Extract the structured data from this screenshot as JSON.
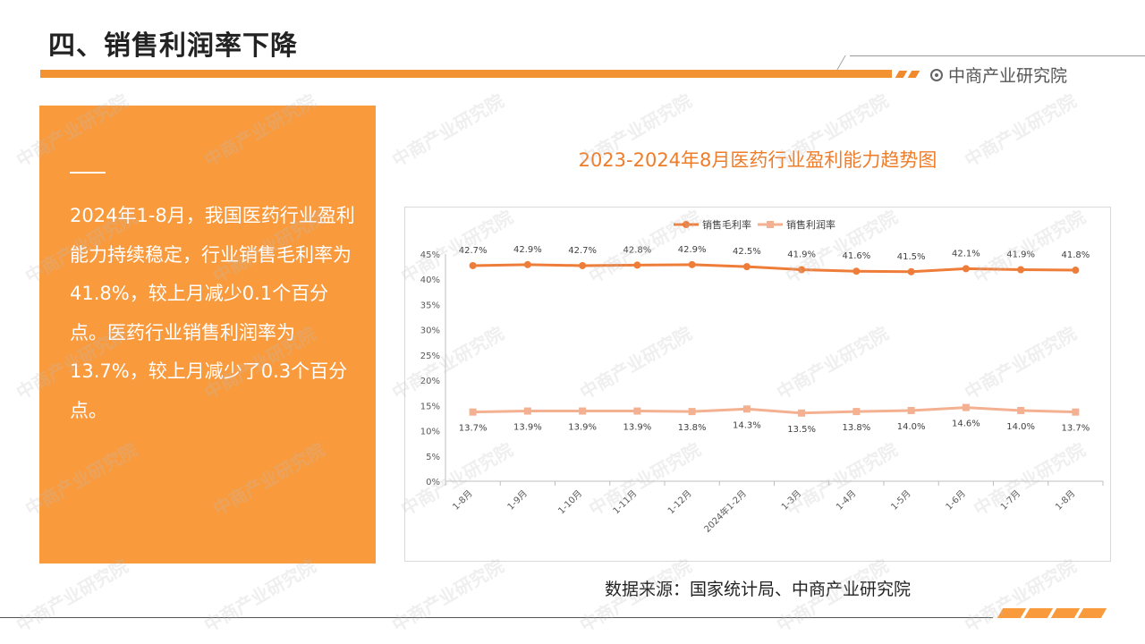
{
  "page_title": "四、销售利润率下降",
  "brand": "中商产业研究院",
  "side_text": "2024年1-8月，我国医药行业盈利能力持续稳定，行业销售毛利率为41.8%，较上月减少0.1个百分点。医药行业销售利润率为13.7%，较上月减少了0.3个百分点。",
  "watermark": "中商产业研究院",
  "source": "数据来源：国家统计局、中商产业研究院",
  "colors": {
    "accent": "#f39233",
    "panel": "#f99a3d",
    "series1": "#ee7d3a",
    "series2": "#f4b191"
  },
  "chart_data": {
    "type": "line",
    "title": "2023-2024年8月医药行业盈利能力趋势图",
    "categories": [
      "1-8月",
      "1-9月",
      "1-10月",
      "1-11月",
      "1-12月",
      "2024年1-2月",
      "1-3月",
      "1-4月",
      "1-5月",
      "1-6月",
      "1-7月",
      "1-8月"
    ],
    "series": [
      {
        "name": "销售毛利率",
        "values": [
          42.7,
          42.9,
          42.7,
          42.8,
          42.9,
          42.5,
          41.9,
          41.6,
          41.5,
          42.1,
          41.9,
          41.8
        ],
        "labels": [
          "42.7%",
          "42.9%",
          "42.7%",
          "42.8%",
          "42.9%",
          "42.5%",
          "41.9%",
          "41.6%",
          "41.5%",
          "42.1%",
          "41.9%",
          "41.8%"
        ]
      },
      {
        "name": "销售利润率",
        "values": [
          13.7,
          13.9,
          13.9,
          13.9,
          13.8,
          14.3,
          13.5,
          13.8,
          14.0,
          14.6,
          14.0,
          13.7
        ],
        "labels": [
          "13.7%",
          "13.9%",
          "13.9%",
          "13.9%",
          "13.8%",
          "14.3%",
          "13.5%",
          "13.8%",
          "14.0%",
          "14.6%",
          "14.0%",
          "13.7%"
        ]
      }
    ],
    "y_ticks": [
      "0%",
      "5%",
      "10%",
      "15%",
      "20%",
      "25%",
      "30%",
      "35%",
      "40%",
      "45%"
    ],
    "ylim": [
      0,
      45
    ],
    "legend": "top-center",
    "grid": false
  }
}
